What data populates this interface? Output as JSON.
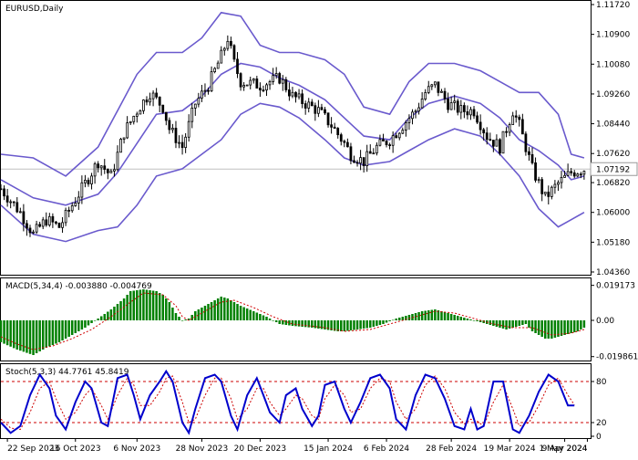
{
  "chart_data": [
    {
      "type": "candlestick",
      "title": "EURUSD,Daily",
      "symbol": "EURUSD",
      "timeframe": "Daily",
      "current_price": "1.07192",
      "y_ticks": [
        "1.11720",
        "1.10900",
        "1.10080",
        "1.09260",
        "1.08440",
        "1.07620",
        "1.06820",
        "1.06000",
        "1.05180",
        "1.04360"
      ],
      "ylim": [
        1.0436,
        1.1172
      ],
      "x_ticks": [
        "22 Sep 2023",
        "16 Oct 2023",
        "6 Nov 2023",
        "28 Nov 2023",
        "20 Dec 2023",
        "15 Jan 2024",
        "6 Feb 2024",
        "28 Feb 2024",
        "19 Mar 2024",
        "9 Apr 2024",
        "1 May 2024"
      ],
      "close_path": [
        [
          0,
          1.0665
        ],
        [
          6,
          1.06
        ],
        [
          10,
          1.054
        ],
        [
          14,
          1.058
        ],
        [
          18,
          1.056
        ],
        [
          22,
          1.062
        ],
        [
          26,
          1.068
        ],
        [
          30,
          1.074
        ],
        [
          34,
          1.07
        ],
        [
          38,
          1.082
        ],
        [
          42,
          1.088
        ],
        [
          46,
          1.093
        ],
        [
          50,
          1.089
        ],
        [
          52,
          1.083
        ],
        [
          56,
          1.078
        ],
        [
          60,
          1.09
        ],
        [
          64,
          1.095
        ],
        [
          68,
          1.103
        ],
        [
          70,
          1.108
        ],
        [
          72,
          1.101
        ],
        [
          74,
          1.096
        ],
        [
          80,
          1.095
        ],
        [
          86,
          1.097
        ],
        [
          90,
          1.092
        ],
        [
          94,
          1.09
        ],
        [
          98,
          1.088
        ],
        [
          102,
          1.084
        ],
        [
          106,
          1.079
        ],
        [
          108,
          1.076
        ],
        [
          112,
          1.074
        ],
        [
          116,
          1.078
        ],
        [
          120,
          1.08
        ],
        [
          124,
          1.084
        ],
        [
          128,
          1.088
        ],
        [
          131,
          1.093
        ],
        [
          134,
          1.095
        ],
        [
          138,
          1.09
        ],
        [
          142,
          1.088
        ],
        [
          146,
          1.088
        ],
        [
          150,
          1.081
        ],
        [
          154,
          1.078
        ],
        [
          158,
          1.088
        ],
        [
          160,
          1.084
        ],
        [
          164,
          1.072
        ],
        [
          168,
          1.064
        ],
        [
          172,
          1.068
        ],
        [
          176,
          1.071
        ],
        [
          180,
          1.0719
        ]
      ],
      "bollinger_upper": [
        [
          0,
          1.076
        ],
        [
          10,
          1.075
        ],
        [
          20,
          1.07
        ],
        [
          30,
          1.078
        ],
        [
          36,
          1.088
        ],
        [
          42,
          1.098
        ],
        [
          48,
          1.104
        ],
        [
          56,
          1.104
        ],
        [
          62,
          1.108
        ],
        [
          68,
          1.115
        ],
        [
          74,
          1.114
        ],
        [
          80,
          1.106
        ],
        [
          86,
          1.104
        ],
        [
          92,
          1.104
        ],
        [
          100,
          1.102
        ],
        [
          106,
          1.098
        ],
        [
          112,
          1.089
        ],
        [
          120,
          1.087
        ],
        [
          126,
          1.096
        ],
        [
          132,
          1.101
        ],
        [
          140,
          1.101
        ],
        [
          148,
          1.099
        ],
        [
          154,
          1.096
        ],
        [
          160,
          1.093
        ],
        [
          166,
          1.093
        ],
        [
          172,
          1.087
        ],
        [
          176,
          1.076
        ],
        [
          180,
          1.075
        ]
      ],
      "bollinger_middle": [
        [
          0,
          1.069
        ],
        [
          10,
          1.064
        ],
        [
          20,
          1.062
        ],
        [
          30,
          1.065
        ],
        [
          36,
          1.071
        ],
        [
          42,
          1.079
        ],
        [
          48,
          1.087
        ],
        [
          56,
          1.088
        ],
        [
          62,
          1.092
        ],
        [
          68,
          1.098
        ],
        [
          74,
          1.101
        ],
        [
          80,
          1.1
        ],
        [
          86,
          1.097
        ],
        [
          92,
          1.095
        ],
        [
          100,
          1.091
        ],
        [
          106,
          1.086
        ],
        [
          112,
          1.081
        ],
        [
          120,
          1.08
        ],
        [
          126,
          1.086
        ],
        [
          132,
          1.09
        ],
        [
          140,
          1.092
        ],
        [
          148,
          1.09
        ],
        [
          154,
          1.086
        ],
        [
          160,
          1.08
        ],
        [
          166,
          1.077
        ],
        [
          172,
          1.073
        ],
        [
          176,
          1.069
        ],
        [
          180,
          1.07
        ]
      ],
      "bollinger_lower": [
        [
          0,
          1.062
        ],
        [
          10,
          1.054
        ],
        [
          20,
          1.052
        ],
        [
          30,
          1.055
        ],
        [
          36,
          1.056
        ],
        [
          42,
          1.062
        ],
        [
          48,
          1.07
        ],
        [
          56,
          1.072
        ],
        [
          62,
          1.076
        ],
        [
          68,
          1.08
        ],
        [
          74,
          1.087
        ],
        [
          80,
          1.09
        ],
        [
          86,
          1.089
        ],
        [
          92,
          1.086
        ],
        [
          100,
          1.08
        ],
        [
          106,
          1.075
        ],
        [
          112,
          1.073
        ],
        [
          120,
          1.074
        ],
        [
          126,
          1.077
        ],
        [
          132,
          1.08
        ],
        [
          140,
          1.083
        ],
        [
          148,
          1.081
        ],
        [
          154,
          1.076
        ],
        [
          160,
          1.07
        ],
        [
          166,
          1.061
        ],
        [
          172,
          1.056
        ],
        [
          176,
          1.058
        ],
        [
          180,
          1.06
        ]
      ],
      "colors": {
        "bands": "#6a5acd",
        "candles": "#000000",
        "price_line": "#c0c0c0"
      }
    },
    {
      "type": "histogram",
      "title": "MACD(5,34,4) -0.003880 -0.004769",
      "y_ticks": [
        "0.019173",
        "0.00",
        "-0.019861"
      ],
      "ylim": [
        -0.021,
        0.021
      ],
      "histogram": [
        [
          0,
          -0.012
        ],
        [
          5,
          -0.016
        ],
        [
          10,
          -0.019
        ],
        [
          14,
          -0.015
        ],
        [
          18,
          -0.012
        ],
        [
          22,
          -0.008
        ],
        [
          26,
          -0.004
        ],
        [
          30,
          0.001
        ],
        [
          34,
          0.006
        ],
        [
          38,
          0.012
        ],
        [
          40,
          0.016
        ],
        [
          44,
          0.017
        ],
        [
          48,
          0.016
        ],
        [
          50,
          0.014
        ],
        [
          52,
          0.01
        ],
        [
          54,
          0.004
        ],
        [
          56,
          0.0
        ],
        [
          58,
          0.001
        ],
        [
          60,
          0.005
        ],
        [
          64,
          0.009
        ],
        [
          68,
          0.013
        ],
        [
          70,
          0.012
        ],
        [
          74,
          0.008
        ],
        [
          78,
          0.005
        ],
        [
          82,
          0.002
        ],
        [
          86,
          -0.002
        ],
        [
          90,
          -0.003
        ],
        [
          96,
          -0.004
        ],
        [
          100,
          -0.005
        ],
        [
          104,
          -0.006
        ],
        [
          106,
          -0.006
        ],
        [
          110,
          -0.005
        ],
        [
          114,
          -0.004
        ],
        [
          118,
          -0.002
        ],
        [
          122,
          0.001
        ],
        [
          126,
          0.003
        ],
        [
          130,
          0.005
        ],
        [
          134,
          0.006
        ],
        [
          138,
          0.004
        ],
        [
          142,
          0.002
        ],
        [
          146,
          0.0
        ],
        [
          150,
          -0.002
        ],
        [
          154,
          -0.004
        ],
        [
          156,
          -0.005
        ],
        [
          160,
          -0.003
        ],
        [
          162,
          -0.002
        ],
        [
          164,
          -0.006
        ],
        [
          168,
          -0.01
        ],
        [
          170,
          -0.01
        ],
        [
          174,
          -0.008
        ],
        [
          178,
          -0.006
        ],
        [
          180,
          -0.004
        ]
      ],
      "signal": [
        [
          0,
          -0.009
        ],
        [
          5,
          -0.013
        ],
        [
          10,
          -0.016
        ],
        [
          16,
          -0.014
        ],
        [
          22,
          -0.01
        ],
        [
          28,
          -0.005
        ],
        [
          34,
          0.002
        ],
        [
          40,
          0.01
        ],
        [
          44,
          0.015
        ],
        [
          50,
          0.014
        ],
        [
          54,
          0.008
        ],
        [
          56,
          0.002
        ],
        [
          58,
          0.0
        ],
        [
          62,
          0.004
        ],
        [
          68,
          0.01
        ],
        [
          72,
          0.011
        ],
        [
          78,
          0.007
        ],
        [
          84,
          0.002
        ],
        [
          90,
          -0.002
        ],
        [
          100,
          -0.004
        ],
        [
          106,
          -0.006
        ],
        [
          114,
          -0.005
        ],
        [
          120,
          -0.002
        ],
        [
          128,
          0.002
        ],
        [
          134,
          0.005
        ],
        [
          140,
          0.004
        ],
        [
          146,
          0.001
        ],
        [
          152,
          -0.002
        ],
        [
          158,
          -0.004
        ],
        [
          164,
          -0.004
        ],
        [
          170,
          -0.008
        ],
        [
          176,
          -0.007
        ],
        [
          180,
          -0.005
        ]
      ],
      "colors": {
        "histogram": "#008000",
        "signal": "#d00000"
      }
    },
    {
      "type": "line",
      "title": "Stoch(5,3,3) 44.7761 45.8419",
      "y_ticks": [
        "80",
        "20",
        "0"
      ],
      "ylim": [
        0,
        100
      ],
      "levels": [
        80,
        20
      ],
      "main": [
        [
          0,
          20
        ],
        [
          3,
          5
        ],
        [
          6,
          15
        ],
        [
          9,
          60
        ],
        [
          12,
          90
        ],
        [
          15,
          70
        ],
        [
          17,
          30
        ],
        [
          20,
          10
        ],
        [
          23,
          50
        ],
        [
          26,
          80
        ],
        [
          28,
          70
        ],
        [
          31,
          20
        ],
        [
          33,
          15
        ],
        [
          36,
          85
        ],
        [
          39,
          90
        ],
        [
          41,
          60
        ],
        [
          43,
          25
        ],
        [
          46,
          60
        ],
        [
          49,
          80
        ],
        [
          51,
          95
        ],
        [
          53,
          80
        ],
        [
          56,
          20
        ],
        [
          58,
          5
        ],
        [
          60,
          40
        ],
        [
          63,
          85
        ],
        [
          66,
          90
        ],
        [
          68,
          80
        ],
        [
          71,
          30
        ],
        [
          73,
          10
        ],
        [
          76,
          60
        ],
        [
          79,
          85
        ],
        [
          81,
          60
        ],
        [
          83,
          35
        ],
        [
          86,
          20
        ],
        [
          88,
          60
        ],
        [
          91,
          70
        ],
        [
          93,
          40
        ],
        [
          96,
          15
        ],
        [
          98,
          30
        ],
        [
          100,
          75
        ],
        [
          103,
          80
        ],
        [
          106,
          40
        ],
        [
          108,
          20
        ],
        [
          111,
          50
        ],
        [
          114,
          85
        ],
        [
          117,
          90
        ],
        [
          120,
          70
        ],
        [
          122,
          25
        ],
        [
          125,
          10
        ],
        [
          128,
          60
        ],
        [
          131,
          90
        ],
        [
          134,
          85
        ],
        [
          137,
          55
        ],
        [
          140,
          15
        ],
        [
          143,
          10
        ],
        [
          145,
          40
        ],
        [
          147,
          10
        ],
        [
          149,
          15
        ],
        [
          152,
          80
        ],
        [
          155,
          80
        ],
        [
          158,
          10
        ],
        [
          160,
          5
        ],
        [
          163,
          30
        ],
        [
          166,
          65
        ],
        [
          169,
          90
        ],
        [
          172,
          80
        ],
        [
          175,
          45
        ],
        [
          177,
          45
        ]
      ],
      "signal": [
        [
          0,
          25
        ],
        [
          3,
          12
        ],
        [
          6,
          10
        ],
        [
          9,
          35
        ],
        [
          12,
          70
        ],
        [
          15,
          80
        ],
        [
          17,
          55
        ],
        [
          20,
          25
        ],
        [
          23,
          35
        ],
        [
          26,
          60
        ],
        [
          28,
          70
        ],
        [
          31,
          45
        ],
        [
          33,
          25
        ],
        [
          36,
          60
        ],
        [
          39,
          85
        ],
        [
          41,
          75
        ],
        [
          43,
          45
        ],
        [
          46,
          45
        ],
        [
          49,
          65
        ],
        [
          51,
          85
        ],
        [
          53,
          88
        ],
        [
          56,
          50
        ],
        [
          58,
          20
        ],
        [
          60,
          25
        ],
        [
          63,
          60
        ],
        [
          66,
          85
        ],
        [
          68,
          85
        ],
        [
          71,
          55
        ],
        [
          73,
          25
        ],
        [
          76,
          40
        ],
        [
          79,
          70
        ],
        [
          81,
          70
        ],
        [
          83,
          50
        ],
        [
          86,
          30
        ],
        [
          88,
          40
        ],
        [
          91,
          60
        ],
        [
          93,
          55
        ],
        [
          96,
          30
        ],
        [
          98,
          25
        ],
        [
          100,
          55
        ],
        [
          103,
          75
        ],
        [
          106,
          60
        ],
        [
          108,
          35
        ],
        [
          111,
          40
        ],
        [
          114,
          70
        ],
        [
          117,
          85
        ],
        [
          120,
          80
        ],
        [
          122,
          50
        ],
        [
          125,
          25
        ],
        [
          128,
          40
        ],
        [
          131,
          75
        ],
        [
          134,
          88
        ],
        [
          137,
          70
        ],
        [
          140,
          35
        ],
        [
          143,
          18
        ],
        [
          145,
          25
        ],
        [
          147,
          22
        ],
        [
          149,
          15
        ],
        [
          152,
          50
        ],
        [
          155,
          75
        ],
        [
          158,
          40
        ],
        [
          160,
          15
        ],
        [
          163,
          20
        ],
        [
          166,
          45
        ],
        [
          169,
          75
        ],
        [
          172,
          85
        ],
        [
          175,
          60
        ],
        [
          177,
          46
        ]
      ],
      "colors": {
        "main": "#0000cc",
        "signal": "#cc0000",
        "levels": "#cc0000"
      }
    }
  ]
}
